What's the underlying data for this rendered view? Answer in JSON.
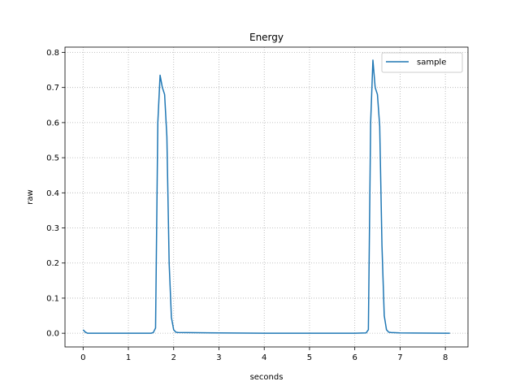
{
  "chart_data": {
    "type": "line",
    "title": "Energy",
    "xlabel": "seconds",
    "ylabel": "raw",
    "xlim": [
      -0.4,
      8.5
    ],
    "ylim": [
      -0.039,
      0.815
    ],
    "xticks": [
      0,
      1,
      2,
      3,
      4,
      5,
      6,
      7,
      8
    ],
    "yticks": [
      0.0,
      0.1,
      0.2,
      0.3,
      0.4,
      0.5,
      0.6,
      0.7,
      0.8
    ],
    "xtick_labels": [
      "0",
      "1",
      "2",
      "3",
      "4",
      "5",
      "6",
      "7",
      "8"
    ],
    "ytick_labels": [
      "0.0",
      "0.1",
      "0.2",
      "0.3",
      "0.4",
      "0.5",
      "0.6",
      "0.7",
      "0.8"
    ],
    "grid": true,
    "legend_position": "top-right",
    "series": [
      {
        "name": "sample",
        "color": "#1f77b4",
        "x": [
          0.0,
          0.05,
          0.1,
          0.5,
          1.0,
          1.5,
          1.55,
          1.6,
          1.65,
          1.7,
          1.75,
          1.8,
          1.85,
          1.9,
          1.95,
          2.0,
          2.05,
          2.1,
          3.0,
          4.0,
          5.0,
          6.0,
          6.25,
          6.3,
          6.35,
          6.4,
          6.45,
          6.5,
          6.55,
          6.6,
          6.65,
          6.7,
          6.75,
          6.8,
          7.0,
          8.0,
          8.1
        ],
        "y": [
          0.01,
          0.003,
          0.0,
          0.0,
          0.0,
          0.0,
          0.002,
          0.015,
          0.6,
          0.735,
          0.7,
          0.68,
          0.56,
          0.2,
          0.045,
          0.01,
          0.003,
          0.002,
          0.001,
          0.0,
          0.0,
          0.0,
          0.001,
          0.01,
          0.6,
          0.778,
          0.7,
          0.68,
          0.59,
          0.25,
          0.05,
          0.01,
          0.003,
          0.002,
          0.001,
          0.0,
          0.0
        ]
      }
    ]
  }
}
